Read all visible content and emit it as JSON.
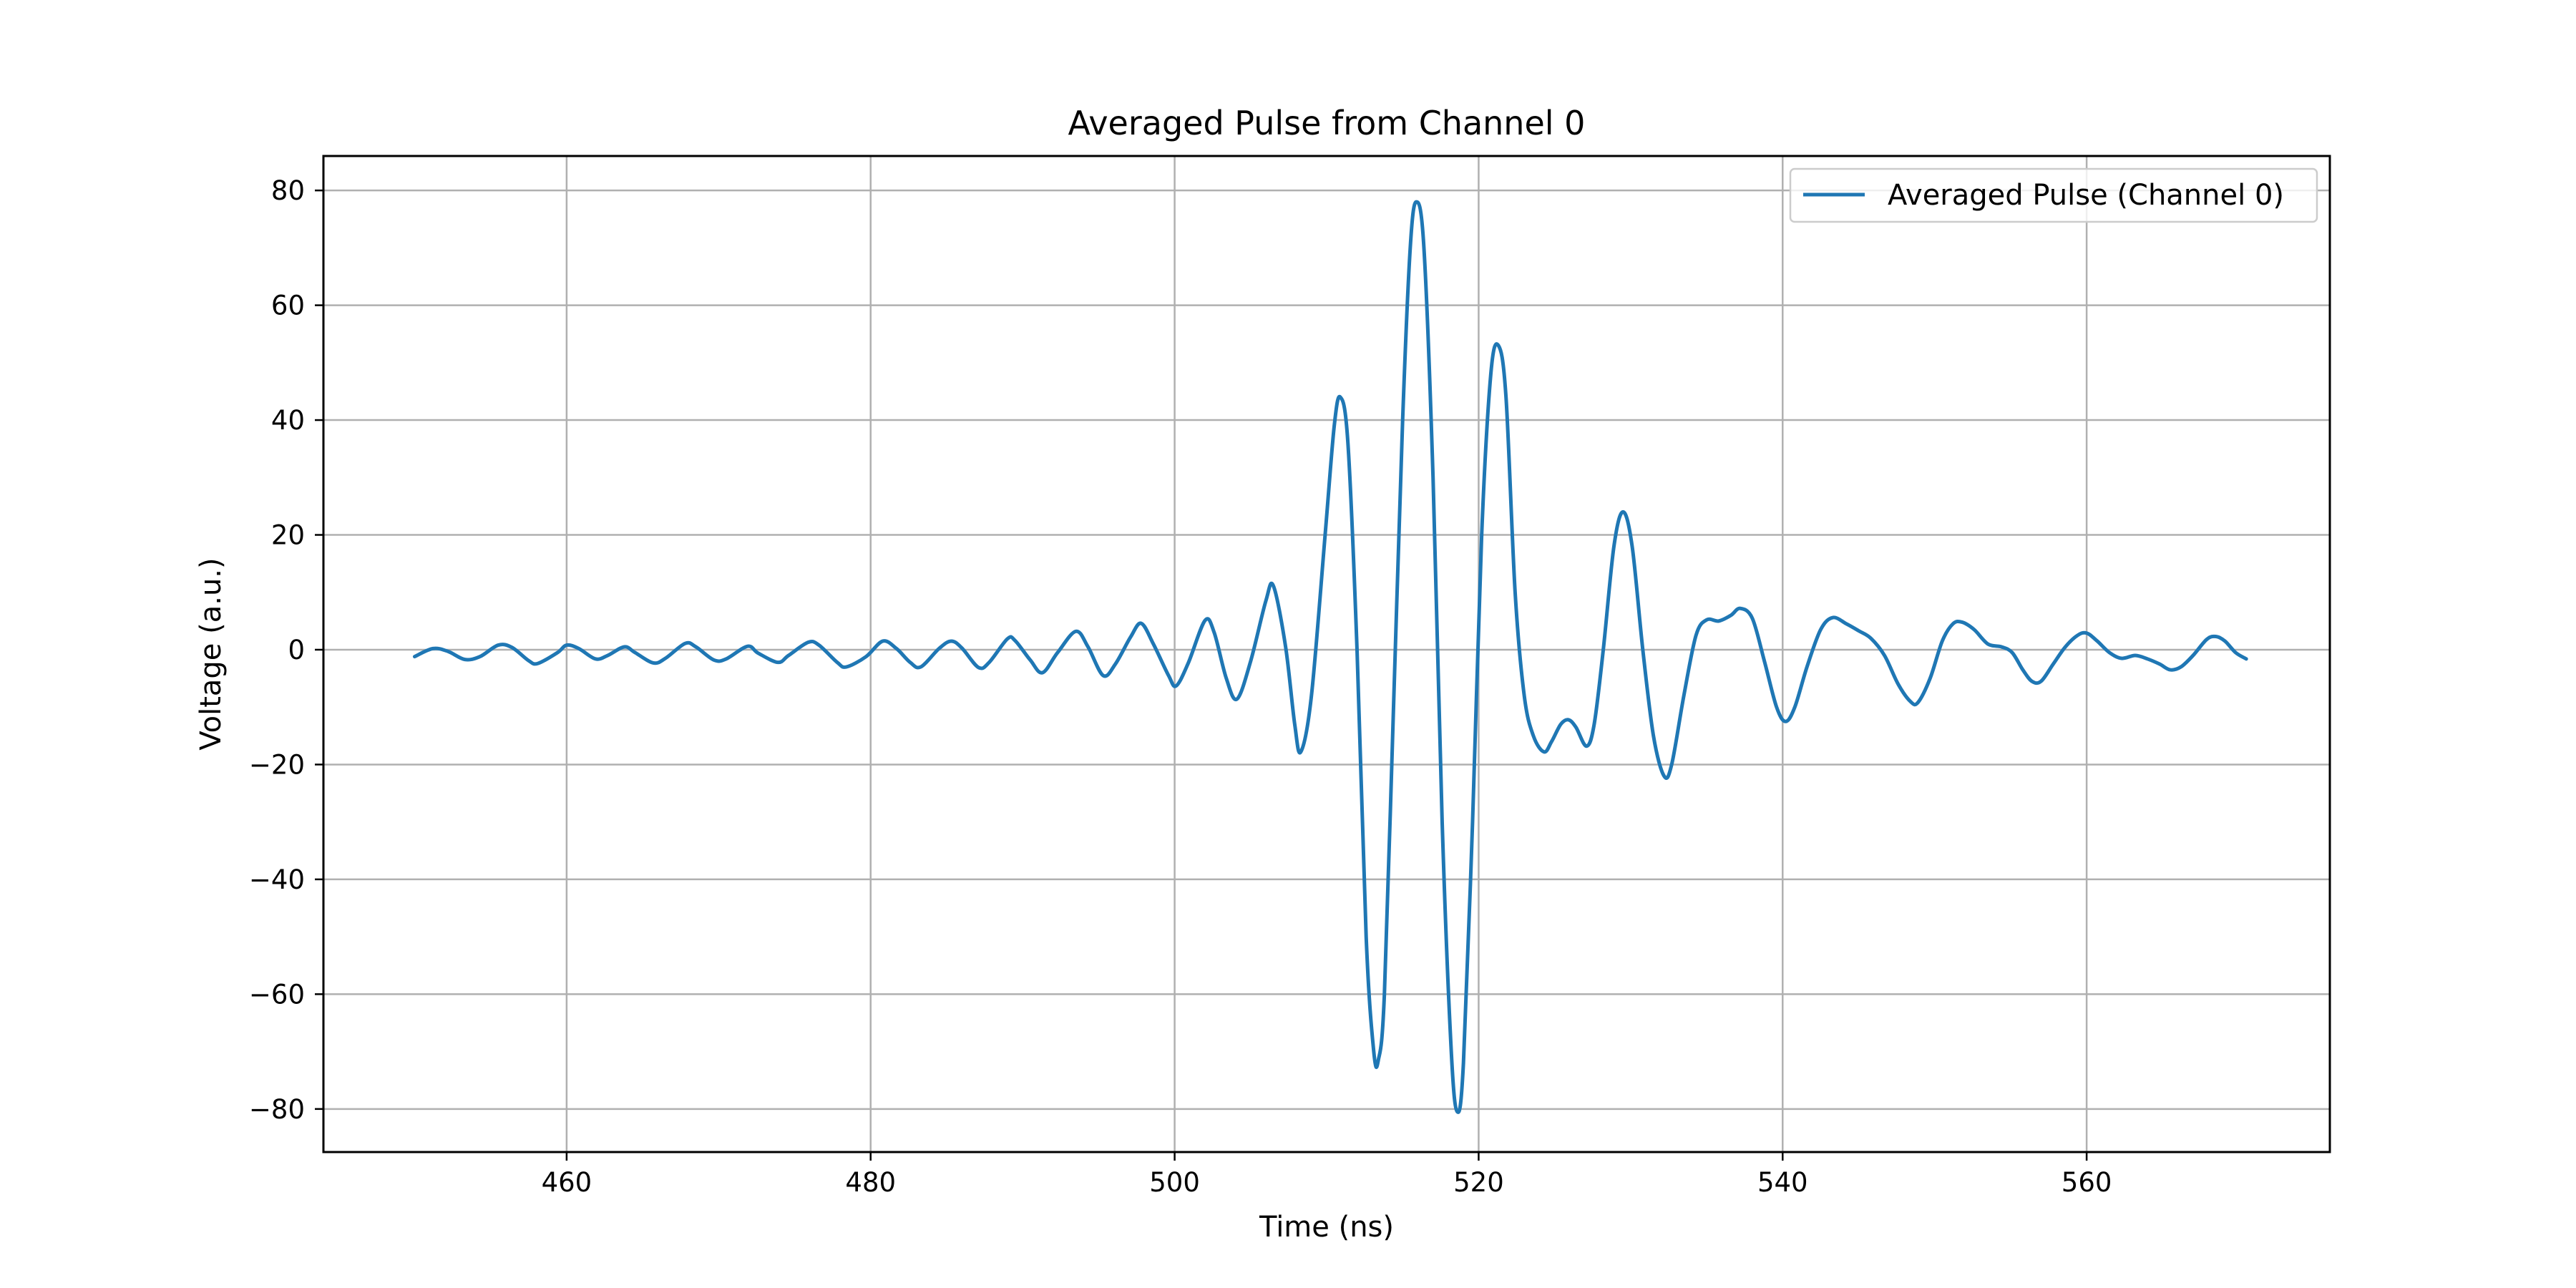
{
  "chart_data": {
    "type": "line",
    "title": "Averaged Pulse from Channel 0",
    "xlabel": "Time (ns)",
    "ylabel": "Voltage (a.u.)",
    "xlim": [
      444,
      576
    ],
    "ylim": [
      -87.5,
      86
    ],
    "x_ticks": [
      460,
      480,
      500,
      520,
      540,
      560
    ],
    "x_tick_labels": [
      "460",
      "480",
      "500",
      "520",
      "540",
      "560"
    ],
    "y_ticks": [
      -80,
      -60,
      -40,
      -20,
      0,
      20,
      40,
      60,
      80
    ],
    "y_tick_labels": [
      "−80",
      "−60",
      "−40",
      "−20",
      "0",
      "20",
      "40",
      "60",
      "80"
    ],
    "grid": true,
    "legend_position": "top-right",
    "series": [
      {
        "name": "Averaged Pulse (Channel 0)",
        "color": "#1f77b4",
        "points": [
          [
            450.0,
            -1.2
          ],
          [
            451.2,
            0.2
          ],
          [
            452.2,
            -0.3
          ],
          [
            453.3,
            -1.7
          ],
          [
            454.3,
            -1.2
          ],
          [
            455.5,
            0.8
          ],
          [
            456.4,
            0.4
          ],
          [
            457.5,
            -1.9
          ],
          [
            458.1,
            -2.4
          ],
          [
            459.4,
            -0.5
          ],
          [
            460.0,
            0.8
          ],
          [
            460.8,
            0.2
          ],
          [
            461.9,
            -1.6
          ],
          [
            462.7,
            -1.0
          ],
          [
            463.8,
            0.5
          ],
          [
            464.5,
            -0.5
          ],
          [
            465.7,
            -2.3
          ],
          [
            466.5,
            -1.5
          ],
          [
            467.8,
            1.1
          ],
          [
            468.5,
            0.5
          ],
          [
            469.7,
            -1.8
          ],
          [
            470.5,
            -1.6
          ],
          [
            471.9,
            0.6
          ],
          [
            472.6,
            -0.6
          ],
          [
            473.9,
            -2.2
          ],
          [
            474.6,
            -1.0
          ],
          [
            475.9,
            1.3
          ],
          [
            476.6,
            0.8
          ],
          [
            477.8,
            -2.2
          ],
          [
            478.4,
            -3.0
          ],
          [
            479.7,
            -1.2
          ],
          [
            480.8,
            1.5
          ],
          [
            481.7,
            0.2
          ],
          [
            482.6,
            -2.2
          ],
          [
            483.3,
            -3.0
          ],
          [
            484.5,
            0.2
          ],
          [
            485.3,
            1.5
          ],
          [
            486.0,
            0.3
          ],
          [
            487.1,
            -3.1
          ],
          [
            487.8,
            -2.2
          ],
          [
            489.0,
            1.9
          ],
          [
            489.5,
            1.6
          ],
          [
            490.5,
            -1.8
          ],
          [
            491.3,
            -4.0
          ],
          [
            492.3,
            -0.5
          ],
          [
            493.5,
            3.2
          ],
          [
            494.3,
            0.5
          ],
          [
            495.3,
            -4.5
          ],
          [
            496.1,
            -2.5
          ],
          [
            497.1,
            2.2
          ],
          [
            497.8,
            4.6
          ],
          [
            498.6,
            1.0
          ],
          [
            499.6,
            -4.5
          ],
          [
            500.1,
            -6.3
          ],
          [
            500.9,
            -2.3
          ],
          [
            502.0,
            5.1
          ],
          [
            502.6,
            3.0
          ],
          [
            503.4,
            -5.0
          ],
          [
            504.1,
            -8.6
          ],
          [
            505.0,
            -2.0
          ],
          [
            506.0,
            8.5
          ],
          [
            506.5,
            11.1
          ],
          [
            507.3,
            0.5
          ],
          [
            507.9,
            -13.0
          ],
          [
            508.3,
            -17.8
          ],
          [
            509.0,
            -8.0
          ],
          [
            509.9,
            20.0
          ],
          [
            510.5,
            39.0
          ],
          [
            510.9,
            44.0
          ],
          [
            511.4,
            36.0
          ],
          [
            512.0,
            0.0
          ],
          [
            512.6,
            -50.0
          ],
          [
            513.1,
            -70.0
          ],
          [
            513.4,
            -71.5
          ],
          [
            513.8,
            -60.0
          ],
          [
            514.4,
            -10.0
          ],
          [
            515.0,
            40.0
          ],
          [
            515.5,
            70.0
          ],
          [
            515.9,
            78.0
          ],
          [
            516.4,
            70.0
          ],
          [
            517.0,
            30.0
          ],
          [
            517.6,
            -30.0
          ],
          [
            518.2,
            -70.0
          ],
          [
            518.6,
            -80.5
          ],
          [
            519.0,
            -72.0
          ],
          [
            519.6,
            -30.0
          ],
          [
            520.2,
            20.0
          ],
          [
            520.8,
            48.0
          ],
          [
            521.3,
            53.0
          ],
          [
            521.8,
            44.0
          ],
          [
            522.4,
            10.0
          ],
          [
            523.0,
            -8.0
          ],
          [
            523.6,
            -15.0
          ],
          [
            524.3,
            -17.8
          ],
          [
            524.8,
            -16.0
          ],
          [
            525.4,
            -13.0
          ],
          [
            525.9,
            -12.2
          ],
          [
            526.4,
            -13.5
          ],
          [
            527.1,
            -16.8
          ],
          [
            527.6,
            -13.0
          ],
          [
            528.2,
            0.0
          ],
          [
            528.9,
            18.0
          ],
          [
            529.5,
            24.0
          ],
          [
            530.1,
            18.0
          ],
          [
            530.8,
            0.0
          ],
          [
            531.5,
            -15.0
          ],
          [
            532.2,
            -22.0
          ],
          [
            532.7,
            -20.0
          ],
          [
            533.5,
            -8.0
          ],
          [
            534.3,
            2.5
          ],
          [
            535.0,
            5.2
          ],
          [
            535.8,
            5.0
          ],
          [
            536.6,
            6.0
          ],
          [
            537.2,
            7.2
          ],
          [
            538.0,
            5.5
          ],
          [
            538.8,
            -2.0
          ],
          [
            539.6,
            -10.0
          ],
          [
            540.2,
            -12.5
          ],
          [
            540.8,
            -10.0
          ],
          [
            541.6,
            -3.0
          ],
          [
            542.5,
            3.5
          ],
          [
            543.3,
            5.6
          ],
          [
            544.2,
            4.5
          ],
          [
            545.0,
            3.3
          ],
          [
            545.8,
            2.0
          ],
          [
            546.7,
            -1.0
          ],
          [
            547.6,
            -6.0
          ],
          [
            548.4,
            -9.0
          ],
          [
            548.9,
            -9.2
          ],
          [
            549.7,
            -5.0
          ],
          [
            550.5,
            1.5
          ],
          [
            551.2,
            4.5
          ],
          [
            551.8,
            4.8
          ],
          [
            552.6,
            3.5
          ],
          [
            553.5,
            1.0
          ],
          [
            554.4,
            0.5
          ],
          [
            555.1,
            -0.5
          ],
          [
            555.8,
            -3.5
          ],
          [
            556.4,
            -5.5
          ],
          [
            557.0,
            -5.5
          ],
          [
            557.8,
            -2.5
          ],
          [
            558.6,
            0.5
          ],
          [
            559.4,
            2.5
          ],
          [
            560.0,
            2.9
          ],
          [
            560.7,
            1.5
          ],
          [
            561.5,
            -0.5
          ],
          [
            562.3,
            -1.5
          ],
          [
            563.2,
            -1.0
          ],
          [
            564.0,
            -1.6
          ],
          [
            564.8,
            -2.5
          ],
          [
            565.5,
            -3.5
          ],
          [
            566.2,
            -3.0
          ],
          [
            567.0,
            -1.0
          ],
          [
            567.9,
            1.8
          ],
          [
            568.5,
            2.3
          ],
          [
            569.1,
            1.5
          ],
          [
            569.8,
            -0.5
          ],
          [
            570.5,
            -1.6
          ]
        ]
      }
    ]
  }
}
